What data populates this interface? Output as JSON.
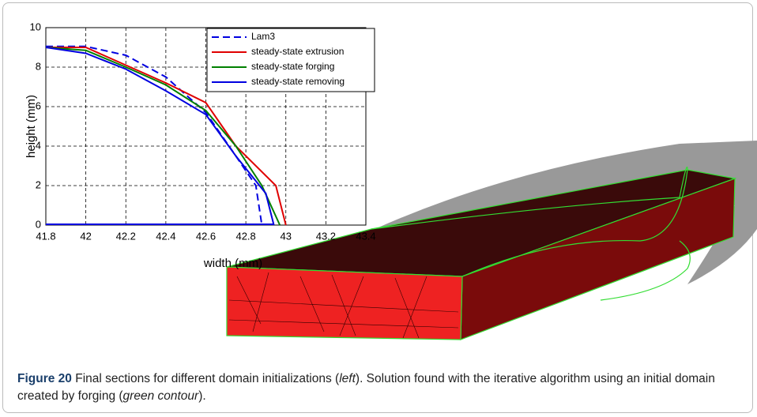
{
  "chart_data": {
    "type": "line",
    "xlabel": "width (mm)",
    "ylabel": "height (mm)",
    "xlim": [
      41.8,
      43.4
    ],
    "xticks": [
      41.8,
      42,
      42.2,
      42.4,
      42.6,
      42.8,
      43,
      43.2,
      43.4
    ],
    "ylim": [
      0,
      10
    ],
    "yticks": [
      0,
      2,
      4,
      6,
      8,
      10
    ],
    "grid": true,
    "legend": "upper right",
    "series": [
      {
        "name": "Lam3",
        "color": "#0000e0",
        "dashed": true,
        "x": [
          41.8,
          42,
          42.2,
          42.4,
          42.6,
          42.75,
          42.85,
          42.88
        ],
        "values": [
          9.05,
          9.05,
          8.6,
          7.5,
          5.7,
          3.5,
          2,
          0
        ]
      },
      {
        "name": "steady-state extrusion",
        "color": "#e00000",
        "dashed": false,
        "x": [
          41.8,
          42,
          42.2,
          42.4,
          42.6,
          42.75,
          42.95,
          43
        ],
        "values": [
          9,
          9,
          8.1,
          7.2,
          6.2,
          4,
          2,
          0
        ]
      },
      {
        "name": "steady-state forging",
        "color": "#008000",
        "dashed": false,
        "x": [
          41.8,
          42,
          42.2,
          42.4,
          42.6,
          42.75,
          42.88,
          42.97
        ],
        "values": [
          9,
          8.85,
          8,
          7.1,
          5.8,
          4,
          2,
          0
        ]
      },
      {
        "name": "steady-state removing",
        "color": "#0000e0",
        "dashed": false,
        "x": [
          41.8,
          42,
          42.2,
          42.4,
          42.6,
          42.75,
          42.9,
          42.94
        ],
        "values": [
          9,
          8.7,
          7.9,
          6.8,
          5.6,
          3.5,
          1.6,
          0
        ]
      }
    ]
  },
  "caption": {
    "label": "Figure 20",
    "text_1": " Final sections for different domain initializations (",
    "italic_1": "left",
    "text_2": "). Solution found with the iterative algorithm using an initial domain created by forging (",
    "italic_2": "green contour",
    "text_3": ")."
  }
}
